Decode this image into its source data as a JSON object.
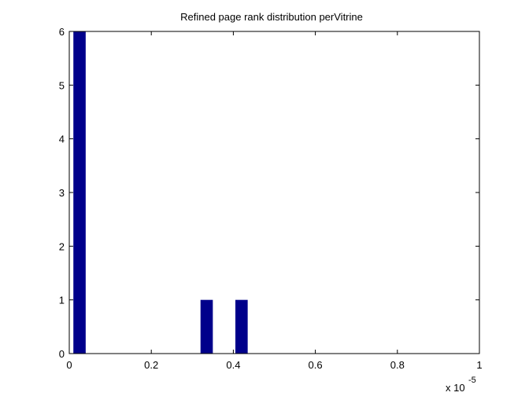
{
  "chart_data": {
    "type": "bar",
    "title": "Refined page rank distribution perVitrine",
    "xlabel": "",
    "ylabel": "",
    "x_scale_label": "x 10",
    "x_scale_exponent": "-5",
    "xlim": [
      0,
      1
    ],
    "ylim": [
      0,
      6
    ],
    "xticks": [
      0,
      0.2,
      0.4,
      0.6,
      0.8,
      1
    ],
    "xtick_labels": [
      "0",
      "0.2",
      "0.4",
      "0.6",
      "0.8",
      "1"
    ],
    "yticks": [
      0,
      1,
      2,
      3,
      4,
      5,
      6
    ],
    "ytick_labels": [
      "0",
      "1",
      "2",
      "3",
      "4",
      "5",
      "6"
    ],
    "bin_width": 0.03,
    "bars": [
      {
        "x": 0.025,
        "value": 6
      },
      {
        "x": 0.335,
        "value": 1
      },
      {
        "x": 0.42,
        "value": 1
      }
    ],
    "grid": false,
    "bar_color": "#00008B"
  }
}
